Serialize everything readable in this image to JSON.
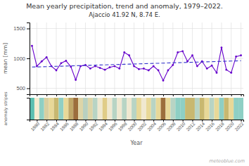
{
  "chart_data": [
    {
      "type": "line",
      "title": "Mean yearly precipitation, trend and anomaly, 1979–2022.",
      "subtitle": "Ajaccio 41.92 N, 8.74 E.",
      "y_label": "mean [mm]",
      "x": [
        1979,
        1980,
        1981,
        1982,
        1983,
        1984,
        1985,
        1986,
        1987,
        1988,
        1989,
        1990,
        1991,
        1992,
        1993,
        1994,
        1995,
        1996,
        1997,
        1998,
        1999,
        2000,
        2001,
        2002,
        2003,
        2004,
        2005,
        2006,
        2007,
        2008,
        2009,
        2010,
        2011,
        2012,
        2013,
        2014,
        2015,
        2016,
        2017,
        2018,
        2019,
        2020,
        2021,
        2022
      ],
      "series": [
        {
          "color": "#6600cc",
          "marker": "circle",
          "values": [
            1210,
            870,
            950,
            1020,
            870,
            800,
            920,
            960,
            860,
            640,
            870,
            890,
            830,
            870,
            840,
            810,
            850,
            870,
            830,
            1100,
            1050,
            870,
            820,
            830,
            800,
            870,
            800,
            630,
            800,
            890,
            1100,
            1120,
            950,
            1050,
            870,
            950,
            830,
            880,
            760,
            1180,
            810,
            760,
            1030,
            1050
          ]
        },
        {
          "color": "#3333cc",
          "line_style": "dashed",
          "values": [
            855,
            857.4419,
            859.8837,
            862.3256,
            864.7674,
            867.2093,
            869.6512,
            872.093,
            874.5349,
            876.9767,
            879.4186,
            881.8605,
            884.3023,
            886.7442,
            889.186,
            891.6279,
            894.0698,
            896.5116,
            898.9535,
            901.3953,
            903.8372,
            906.2791,
            908.7209,
            911.1628,
            913.6047,
            916.0465,
            918.4884,
            920.9302,
            923.3721,
            925.814,
            928.2558,
            930.6977,
            933.1395,
            935.5814,
            938.0233,
            940.4651,
            942.907,
            945.3488,
            947.7907,
            950.2326,
            952.6744,
            955.1163,
            957.5581,
            960
          ]
        }
      ],
      "xlim": [
        1978.5,
        2022.5
      ],
      "xticks": [
        1980,
        1982,
        1984,
        1986,
        1988,
        1990,
        1992,
        1994,
        1996,
        1998,
        2000,
        2002,
        2004,
        2006,
        2008,
        2010,
        2012,
        2014,
        2016,
        2018,
        2020,
        2022
      ],
      "ylim": [
        400,
        1600
      ],
      "yticks": [
        500,
        1000,
        1500
      ],
      "grid": true,
      "tick_labels": "y"
    },
    {
      "type": "bar",
      "x_label": "Year",
      "y_label": "anomaly stripes",
      "annotations": [
        "meteoblue.com"
      ],
      "x": [
        1979,
        1980,
        1981,
        1982,
        1983,
        1984,
        1985,
        1986,
        1987,
        1988,
        1989,
        1990,
        1991,
        1992,
        1993,
        1994,
        1995,
        1996,
        1997,
        1998,
        1999,
        2000,
        2001,
        2002,
        2003,
        2004,
        2005,
        2006,
        2007,
        2008,
        2009,
        2010,
        2011,
        2012,
        2013,
        2014,
        2015,
        2016,
        2017,
        2018,
        2019,
        2020,
        2021,
        2022
      ],
      "values": [
        1,
        1,
        1,
        1,
        1,
        1,
        1,
        1,
        1,
        1,
        1,
        1,
        1,
        1,
        1,
        1,
        1,
        1,
        1,
        1,
        1,
        1,
        1,
        1,
        1,
        1,
        1,
        1,
        1,
        1,
        1,
        1,
        1,
        1,
        1,
        1,
        1,
        1,
        1,
        1,
        1,
        1,
        1,
        1
      ],
      "colors": [
        "#5bbfb0",
        "#f5ecd0",
        "#8ecfc4",
        "#d8cea0",
        "#e8d898",
        "#c8b870",
        "#90cfc4",
        "#e8d898",
        "#c0a868",
        "#9c6e3c",
        "#ddd5a8",
        "#b8d0c0",
        "#ddd5a8",
        "#b8d4c4",
        "#f0e8d0",
        "#e0cc88",
        "#f0e8d0",
        "#b8d4c4",
        "#f0e8d0",
        "#b8d4c4",
        "#f0e8d0",
        "#b8d4c4",
        "#e8d898",
        "#f0e8d0",
        "#e8d898",
        "#b8d4c4",
        "#e8d898",
        "#9c6e3c",
        "#e8d898",
        "#b8d4c4",
        "#8ecfc4",
        "#8ecfc4",
        "#c8b870",
        "#c8b870",
        "#b8d4c4",
        "#c8b870",
        "#e8d898",
        "#b8d4c4",
        "#e8d898",
        "#8ecfc4",
        "#c8b870",
        "#e8d898",
        "#8ecfc4",
        "#8ecfc4"
      ],
      "xlim": [
        1978.5,
        2022.5
      ],
      "xticks": [
        1980,
        1982,
        1984,
        1986,
        1988,
        1990,
        1992,
        1994,
        1996,
        1998,
        2000,
        2002,
        2004,
        2006,
        2008,
        2010,
        2012,
        2014,
        2016,
        2018,
        2020,
        2022
      ],
      "ylim": [
        0,
        1
      ],
      "yticks": [],
      "tick_labels": "x"
    }
  ]
}
